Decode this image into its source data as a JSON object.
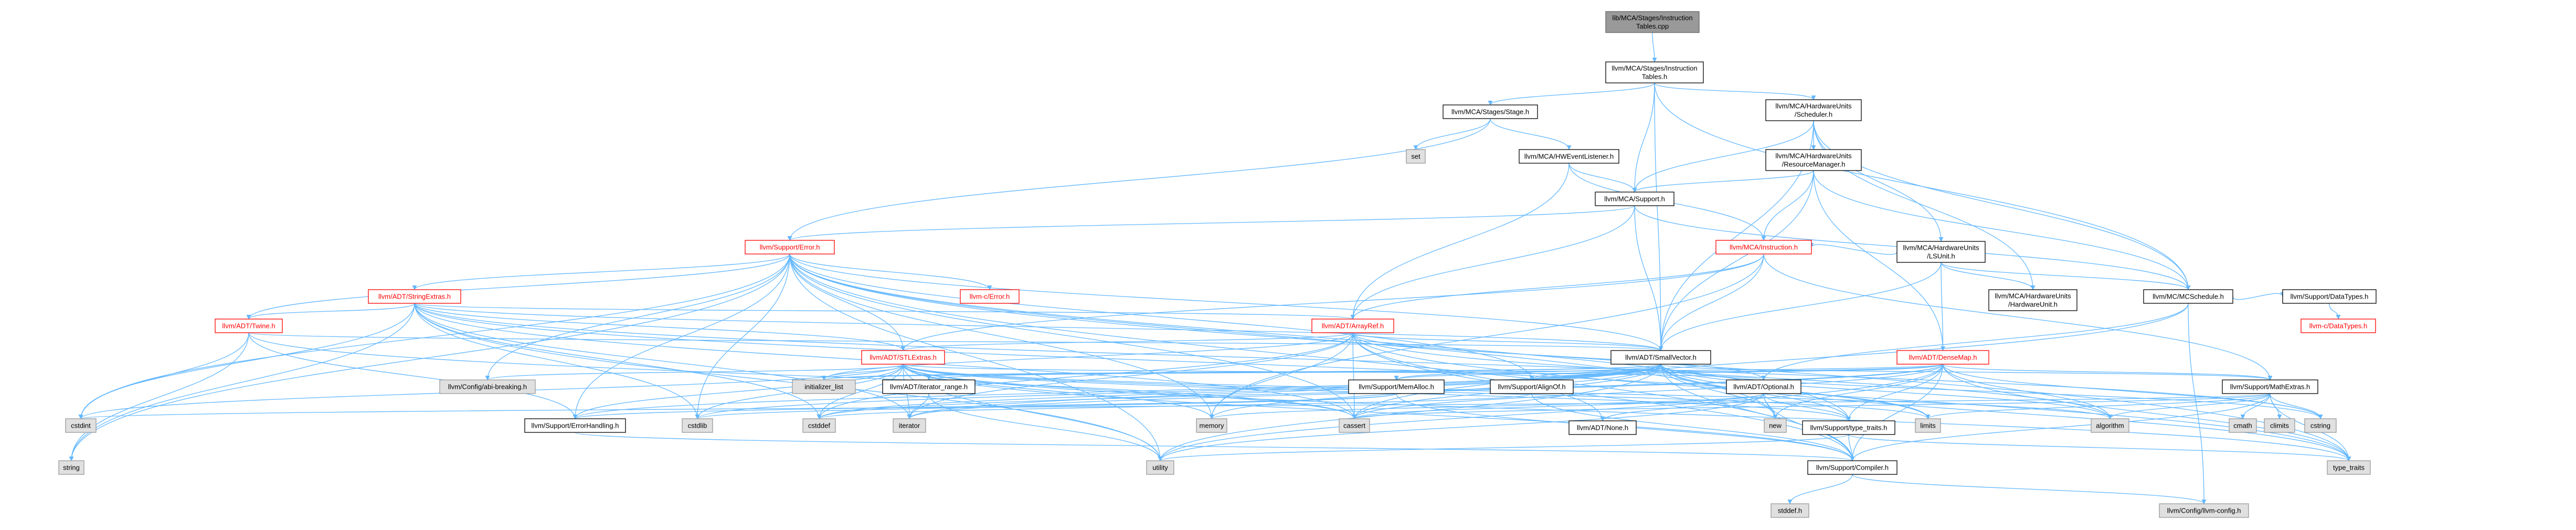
{
  "nodes": [
    {
      "id": "root",
      "label": [
        "lib/MCA/Stages/Instruction",
        "Tables.cpp"
      ],
      "kind": "root"
    },
    {
      "id": "it",
      "label": [
        "llvm/MCA/Stages/Instruction",
        "Tables.h"
      ],
      "kind": "plain"
    },
    {
      "id": "stage",
      "label": [
        "llvm/MCA/Stages/Stage.h"
      ],
      "kind": "plain"
    },
    {
      "id": "sched",
      "label": [
        "llvm/MCA/HardwareUnits",
        "/Scheduler.h"
      ],
      "kind": "plain"
    },
    {
      "id": "set",
      "label": [
        "set"
      ],
      "kind": "sys"
    },
    {
      "id": "hwel",
      "label": [
        "llvm/MCA/HWEventListener.h"
      ],
      "kind": "plain"
    },
    {
      "id": "rm",
      "label": [
        "llvm/MCA/HardwareUnits",
        "/ResourceManager.h"
      ],
      "kind": "plain"
    },
    {
      "id": "support",
      "label": [
        "llvm/MCA/Support.h"
      ],
      "kind": "plain"
    },
    {
      "id": "error",
      "label": [
        "llvm/Support/Error.h"
      ],
      "kind": "red"
    },
    {
      "id": "lsunit",
      "label": [
        "llvm/MCA/HardwareUnits",
        "/LSUnit.h"
      ],
      "kind": "plain"
    },
    {
      "id": "stringextras",
      "label": [
        "llvm/ADT/StringExtras.h"
      ],
      "kind": "red"
    },
    {
      "id": "cerror",
      "label": [
        "llvm-c/Error.h"
      ],
      "kind": "red"
    },
    {
      "id": "instr",
      "label": [
        "llvm/MCA/Instruction.h"
      ],
      "kind": "red"
    },
    {
      "id": "hwunit",
      "label": [
        "llvm/MCA/HardwareUnits",
        "/HardwareUnit.h"
      ],
      "kind": "plain"
    },
    {
      "id": "mcsched",
      "label": [
        "llvm/MC/MCSchedule.h"
      ],
      "kind": "plain"
    },
    {
      "id": "datatypes",
      "label": [
        "llvm/Support/DataTypes.h"
      ],
      "kind": "plain"
    },
    {
      "id": "twine",
      "label": [
        "llvm/ADT/Twine.h"
      ],
      "kind": "red"
    },
    {
      "id": "arrayref",
      "label": [
        "llvm/ADT/ArrayRef.h"
      ],
      "kind": "red"
    },
    {
      "id": "cdatatypes",
      "label": [
        "llvm-c/DataTypes.h"
      ],
      "kind": "red"
    },
    {
      "id": "stlextras",
      "label": [
        "llvm/ADT/STLExtras.h"
      ],
      "kind": "red"
    },
    {
      "id": "smallvector",
      "label": [
        "llvm/ADT/SmallVector.h"
      ],
      "kind": "plain"
    },
    {
      "id": "densemap",
      "label": [
        "llvm/ADT/DenseMap.h"
      ],
      "kind": "red"
    },
    {
      "id": "abibreaking",
      "label": [
        "llvm/Config/abi-breaking.h"
      ],
      "kind": "sys"
    },
    {
      "id": "iterrange",
      "label": [
        "llvm/ADT/iterator_range.h"
      ],
      "kind": "plain"
    },
    {
      "id": "initlist",
      "label": [
        "initializer_list"
      ],
      "kind": "sys"
    },
    {
      "id": "memalloc",
      "label": [
        "llvm/Support/MemAlloc.h"
      ],
      "kind": "plain"
    },
    {
      "id": "alignof",
      "label": [
        "llvm/Support/AlignOf.h"
      ],
      "kind": "plain"
    },
    {
      "id": "optional",
      "label": [
        "llvm/ADT/Optional.h"
      ],
      "kind": "plain"
    },
    {
      "id": "mathextras",
      "label": [
        "llvm/Support/MathExtras.h"
      ],
      "kind": "plain"
    },
    {
      "id": "errhandling",
      "label": [
        "llvm/Support/ErrorHandling.h"
      ],
      "kind": "plain"
    },
    {
      "id": "none",
      "label": [
        "llvm/ADT/None.h"
      ],
      "kind": "plain"
    },
    {
      "id": "typetraits",
      "label": [
        "llvm/Support/type_traits.h"
      ],
      "kind": "plain"
    },
    {
      "id": "compiler",
      "label": [
        "llvm/Support/Compiler.h"
      ],
      "kind": "plain"
    },
    {
      "id": "cstdint",
      "label": [
        "cstdint"
      ],
      "kind": "sys"
    },
    {
      "id": "cstdlib",
      "label": [
        "cstdlib"
      ],
      "kind": "sys"
    },
    {
      "id": "cstddef",
      "label": [
        "cstddef"
      ],
      "kind": "sys"
    },
    {
      "id": "iterator",
      "label": [
        "iterator"
      ],
      "kind": "sys"
    },
    {
      "id": "memory",
      "label": [
        "memory"
      ],
      "kind": "sys"
    },
    {
      "id": "cassert",
      "label": [
        "cassert"
      ],
      "kind": "sys"
    },
    {
      "id": "new",
      "label": [
        "new"
      ],
      "kind": "sys"
    },
    {
      "id": "limits",
      "label": [
        "limits"
      ],
      "kind": "sys"
    },
    {
      "id": "algorithm",
      "label": [
        "algorithm"
      ],
      "kind": "sys"
    },
    {
      "id": "cmath",
      "label": [
        "cmath"
      ],
      "kind": "sys"
    },
    {
      "id": "climits",
      "label": [
        "climits"
      ],
      "kind": "sys"
    },
    {
      "id": "cstring",
      "label": [
        "cstring"
      ],
      "kind": "sys"
    },
    {
      "id": "string",
      "label": [
        "string"
      ],
      "kind": "sys"
    },
    {
      "id": "utility",
      "label": [
        "utility"
      ],
      "kind": "sys"
    },
    {
      "id": "stdtypetraits",
      "label": [
        "type_traits"
      ],
      "kind": "sys"
    },
    {
      "id": "stddef",
      "label": [
        "stddef.h"
      ],
      "kind": "sys"
    },
    {
      "id": "llvmconfig",
      "label": [
        "llvm/Config/llvm-config.h"
      ],
      "kind": "sys"
    }
  ],
  "edges": [
    [
      "root",
      "it"
    ],
    [
      "it",
      "stage"
    ],
    [
      "it",
      "sched"
    ],
    [
      "it",
      "support"
    ],
    [
      "it",
      "mcsched"
    ],
    [
      "it",
      "smallvector"
    ],
    [
      "stage",
      "set"
    ],
    [
      "stage",
      "hwel"
    ],
    [
      "stage",
      "error"
    ],
    [
      "hwel",
      "support"
    ],
    [
      "hwel",
      "arrayref"
    ],
    [
      "hwel",
      "instr"
    ],
    [
      "sched",
      "rm"
    ],
    [
      "sched",
      "lsunit"
    ],
    [
      "sched",
      "hwunit"
    ],
    [
      "sched",
      "mcsched"
    ],
    [
      "sched",
      "support"
    ],
    [
      "sched",
      "smallvector"
    ],
    [
      "rm",
      "support"
    ],
    [
      "rm",
      "instr"
    ],
    [
      "rm",
      "densemap"
    ],
    [
      "rm",
      "mcsched"
    ],
    [
      "rm",
      "smallvector"
    ],
    [
      "support",
      "error"
    ],
    [
      "support",
      "arrayref"
    ],
    [
      "support",
      "smallvector"
    ],
    [
      "support",
      "mcsched"
    ],
    [
      "lsunit",
      "instr"
    ],
    [
      "lsunit",
      "hwunit"
    ],
    [
      "lsunit",
      "mcsched"
    ],
    [
      "lsunit",
      "smallvector"
    ],
    [
      "lsunit",
      "densemap"
    ],
    [
      "error",
      "stringextras"
    ],
    [
      "error",
      "cerror"
    ],
    [
      "error",
      "twine"
    ],
    [
      "error",
      "stlextras"
    ],
    [
      "error",
      "smallvector"
    ],
    [
      "error",
      "abibreaking"
    ],
    [
      "error",
      "alignof"
    ],
    [
      "error",
      "compiler"
    ],
    [
      "error",
      "errhandling"
    ],
    [
      "error",
      "typetraits"
    ],
    [
      "error",
      "cassert"
    ],
    [
      "error",
      "cstdint"
    ],
    [
      "error",
      "cstdlib"
    ],
    [
      "error",
      "memory"
    ],
    [
      "error",
      "new"
    ],
    [
      "error",
      "string"
    ],
    [
      "error",
      "utility"
    ],
    [
      "error",
      "stdtypetraits"
    ],
    [
      "stringextras",
      "twine"
    ],
    [
      "stringextras",
      "arrayref"
    ],
    [
      "stringextras",
      "stlextras"
    ],
    [
      "stringextras",
      "smallvector"
    ],
    [
      "stringextras",
      "iterator"
    ],
    [
      "stringextras",
      "cassert"
    ],
    [
      "stringextras",
      "cstddef"
    ],
    [
      "stringextras",
      "cstdint"
    ],
    [
      "stringextras",
      "cstdlib"
    ],
    [
      "stringextras",
      "cstring"
    ],
    [
      "stringextras",
      "limits"
    ],
    [
      "stringextras",
      "string"
    ],
    [
      "stringextras",
      "utility"
    ],
    [
      "instr",
      "arrayref"
    ],
    [
      "instr",
      "stlextras"
    ],
    [
      "instr",
      "smallvector"
    ],
    [
      "instr",
      "mathextras"
    ],
    [
      "instr",
      "memory"
    ],
    [
      "mcsched",
      "datatypes"
    ],
    [
      "mcsched",
      "optional"
    ],
    [
      "mcsched",
      "cassert"
    ],
    [
      "mcsched",
      "llvmconfig"
    ],
    [
      "datatypes",
      "cdatatypes"
    ],
    [
      "twine",
      "smallvector"
    ],
    [
      "twine",
      "errhandling"
    ],
    [
      "twine",
      "cassert"
    ],
    [
      "twine",
      "cstdint"
    ],
    [
      "twine",
      "string"
    ],
    [
      "arrayref",
      "stlextras"
    ],
    [
      "arrayref",
      "smallvector"
    ],
    [
      "arrayref",
      "none"
    ],
    [
      "arrayref",
      "optional"
    ],
    [
      "arrayref",
      "compiler"
    ],
    [
      "arrayref",
      "algorithm"
    ],
    [
      "arrayref",
      "array"
    ],
    [
      "arrayref",
      "cassert"
    ],
    [
      "arrayref",
      "cstddef"
    ],
    [
      "arrayref",
      "initlist"
    ],
    [
      "arrayref",
      "iterator"
    ],
    [
      "arrayref",
      "memory"
    ],
    [
      "arrayref",
      "stdtypetraits"
    ],
    [
      "arrayref",
      "vector"
    ],
    [
      "stlextras",
      "abibreaking"
    ],
    [
      "stlextras",
      "iterrange"
    ],
    [
      "stlextras",
      "optional"
    ],
    [
      "stlextras",
      "compiler"
    ],
    [
      "stlextras",
      "errhandling"
    ],
    [
      "stlextras",
      "typetraits"
    ],
    [
      "stlextras",
      "algorithm"
    ],
    [
      "stlextras",
      "cassert"
    ],
    [
      "stlextras",
      "cstddef"
    ],
    [
      "stlextras",
      "cstdint"
    ],
    [
      "stlextras",
      "cstdlib"
    ],
    [
      "stlextras",
      "initlist"
    ],
    [
      "stlextras",
      "iterator"
    ],
    [
      "stlextras",
      "limits"
    ],
    [
      "stlextras",
      "memory"
    ],
    [
      "stlextras",
      "utility"
    ],
    [
      "stlextras",
      "stdtypetraits"
    ],
    [
      "smallvector",
      "iterrange"
    ],
    [
      "smallvector",
      "compiler"
    ],
    [
      "smallvector",
      "errhandling"
    ],
    [
      "smallvector",
      "memalloc"
    ],
    [
      "smallvector",
      "typetraits"
    ],
    [
      "smallvector",
      "algorithm"
    ],
    [
      "smallvector",
      "cassert"
    ],
    [
      "smallvector",
      "cstddef"
    ],
    [
      "smallvector",
      "cstdlib"
    ],
    [
      "smallvector",
      "cstring"
    ],
    [
      "smallvector",
      "initlist"
    ],
    [
      "smallvector",
      "iterator"
    ],
    [
      "smallvector",
      "limits"
    ],
    [
      "smallvector",
      "memory"
    ],
    [
      "smallvector",
      "new"
    ],
    [
      "smallvector",
      "utility"
    ],
    [
      "smallvector",
      "stdtypetraits"
    ],
    [
      "smallvector",
      "alignof"
    ],
    [
      "smallvector",
      "mathextras"
    ],
    [
      "densemap",
      "alignof"
    ],
    [
      "densemap",
      "compiler"
    ],
    [
      "densemap",
      "mathextras"
    ],
    [
      "densemap",
      "memalloc"
    ],
    [
      "densemap",
      "typetraits"
    ],
    [
      "densemap",
      "algorithm"
    ],
    [
      "densemap",
      "cassert"
    ],
    [
      "densemap",
      "cstddef"
    ],
    [
      "densemap",
      "cstring"
    ],
    [
      "densemap",
      "initlist"
    ],
    [
      "densemap",
      "iterator"
    ],
    [
      "densemap",
      "new"
    ],
    [
      "densemap",
      "utility"
    ],
    [
      "densemap",
      "stdtypetraits"
    ],
    [
      "iterrange",
      "iterator"
    ],
    [
      "iterrange",
      "utility"
    ],
    [
      "memalloc",
      "compiler"
    ],
    [
      "memalloc",
      "errhandling"
    ],
    [
      "memalloc",
      "cstdlib"
    ],
    [
      "alignof",
      "compiler"
    ],
    [
      "alignof",
      "cstddef"
    ],
    [
      "optional",
      "none"
    ],
    [
      "optional",
      "compiler"
    ],
    [
      "optional",
      "typetraits"
    ],
    [
      "optional",
      "cassert"
    ],
    [
      "optional",
      "memory"
    ],
    [
      "optional",
      "new"
    ],
    [
      "optional",
      "utility"
    ],
    [
      "mathextras",
      "compiler"
    ],
    [
      "mathextras",
      "algorithm"
    ],
    [
      "mathextras",
      "cassert"
    ],
    [
      "mathextras",
      "climits"
    ],
    [
      "mathextras",
      "cmath"
    ],
    [
      "mathextras",
      "cstdint"
    ],
    [
      "mathextras",
      "cstring"
    ],
    [
      "mathextras",
      "limits"
    ],
    [
      "mathextras",
      "stdtypetraits"
    ],
    [
      "errhandling",
      "compiler"
    ],
    [
      "typetraits",
      "compiler"
    ],
    [
      "typetraits",
      "stdtypetraits"
    ],
    [
      "typetraits",
      "utility"
    ],
    [
      "compiler",
      "llvmconfig"
    ],
    [
      "compiler",
      "stddef"
    ]
  ],
  "colors": {
    "edge": "#63b8ff",
    "root_fill": "#999999",
    "plain_border": "#000000",
    "link_border": "#ff0000",
    "system_fill": "#e0e0e0"
  }
}
